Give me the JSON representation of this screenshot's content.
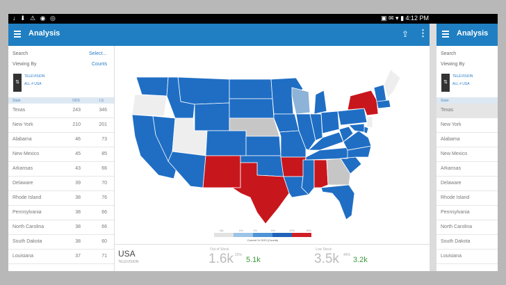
{
  "status": {
    "left_icons": "↓ ⬇ ⚠ ◉ ◎",
    "right": "▣ ✉ ▾ ▮ 4:12 PM"
  },
  "app": {
    "title": "Analysis",
    "side_title": "Analysis"
  },
  "sidebar": {
    "search_label": "Search",
    "search_action": "Select...",
    "viewing_label": "Viewing By",
    "viewing_value": "Counts",
    "media_line1": "TELEVISION",
    "media_line2": "ALL # USA",
    "col_state": "State",
    "col_1": "ODS",
    "col_2": "LS",
    "rows": [
      {
        "state": "Texas",
        "v1": "243",
        "v2": "346"
      },
      {
        "state": "New York",
        "v1": "210",
        "v2": "201"
      },
      {
        "state": "Alabama",
        "v1": "46",
        "v2": "73"
      },
      {
        "state": "New Mexico",
        "v1": "45",
        "v2": "85"
      },
      {
        "state": "Arkansas",
        "v1": "43",
        "v2": "66"
      },
      {
        "state": "Delaware",
        "v1": "39",
        "v2": "70"
      },
      {
        "state": "Rhode Island",
        "v1": "38",
        "v2": "76"
      },
      {
        "state": "Pennsylvania",
        "v1": "38",
        "v2": "66"
      },
      {
        "state": "North Carolina",
        "v1": "38",
        "v2": "66"
      },
      {
        "state": "South Dakota",
        "v1": "38",
        "v2": "60"
      },
      {
        "state": "Louisiana",
        "v1": "37",
        "v2": "71"
      }
    ]
  },
  "legend": {
    "labels": [
      "NA",
      "0%",
      "1%",
      "5%",
      "10%",
      "15%"
    ],
    "title": "Current % OOS (Counts)",
    "colors": [
      "#e2e2e2",
      "#9cc4e6",
      "#4d94d6",
      "#1f64b8",
      "#d01f26"
    ]
  },
  "bottom": {
    "title": "USA",
    "subtitle": "TELEVISION",
    "stat1_label": "Out of Stock",
    "stat1_value": "1.6k",
    "stat1_pct": "22%",
    "stat1_green": "5.1k",
    "stat2_label": "Low Stock",
    "stat2_value": "3.5k",
    "stat2_pct": "45%",
    "stat2_green": "3.2k"
  },
  "map_colors": {
    "blue": "#1f6ec4",
    "red": "#c8161d",
    "gray": "#c6c6c6",
    "light": "#eeeeee",
    "steel": "#8db3d8"
  }
}
